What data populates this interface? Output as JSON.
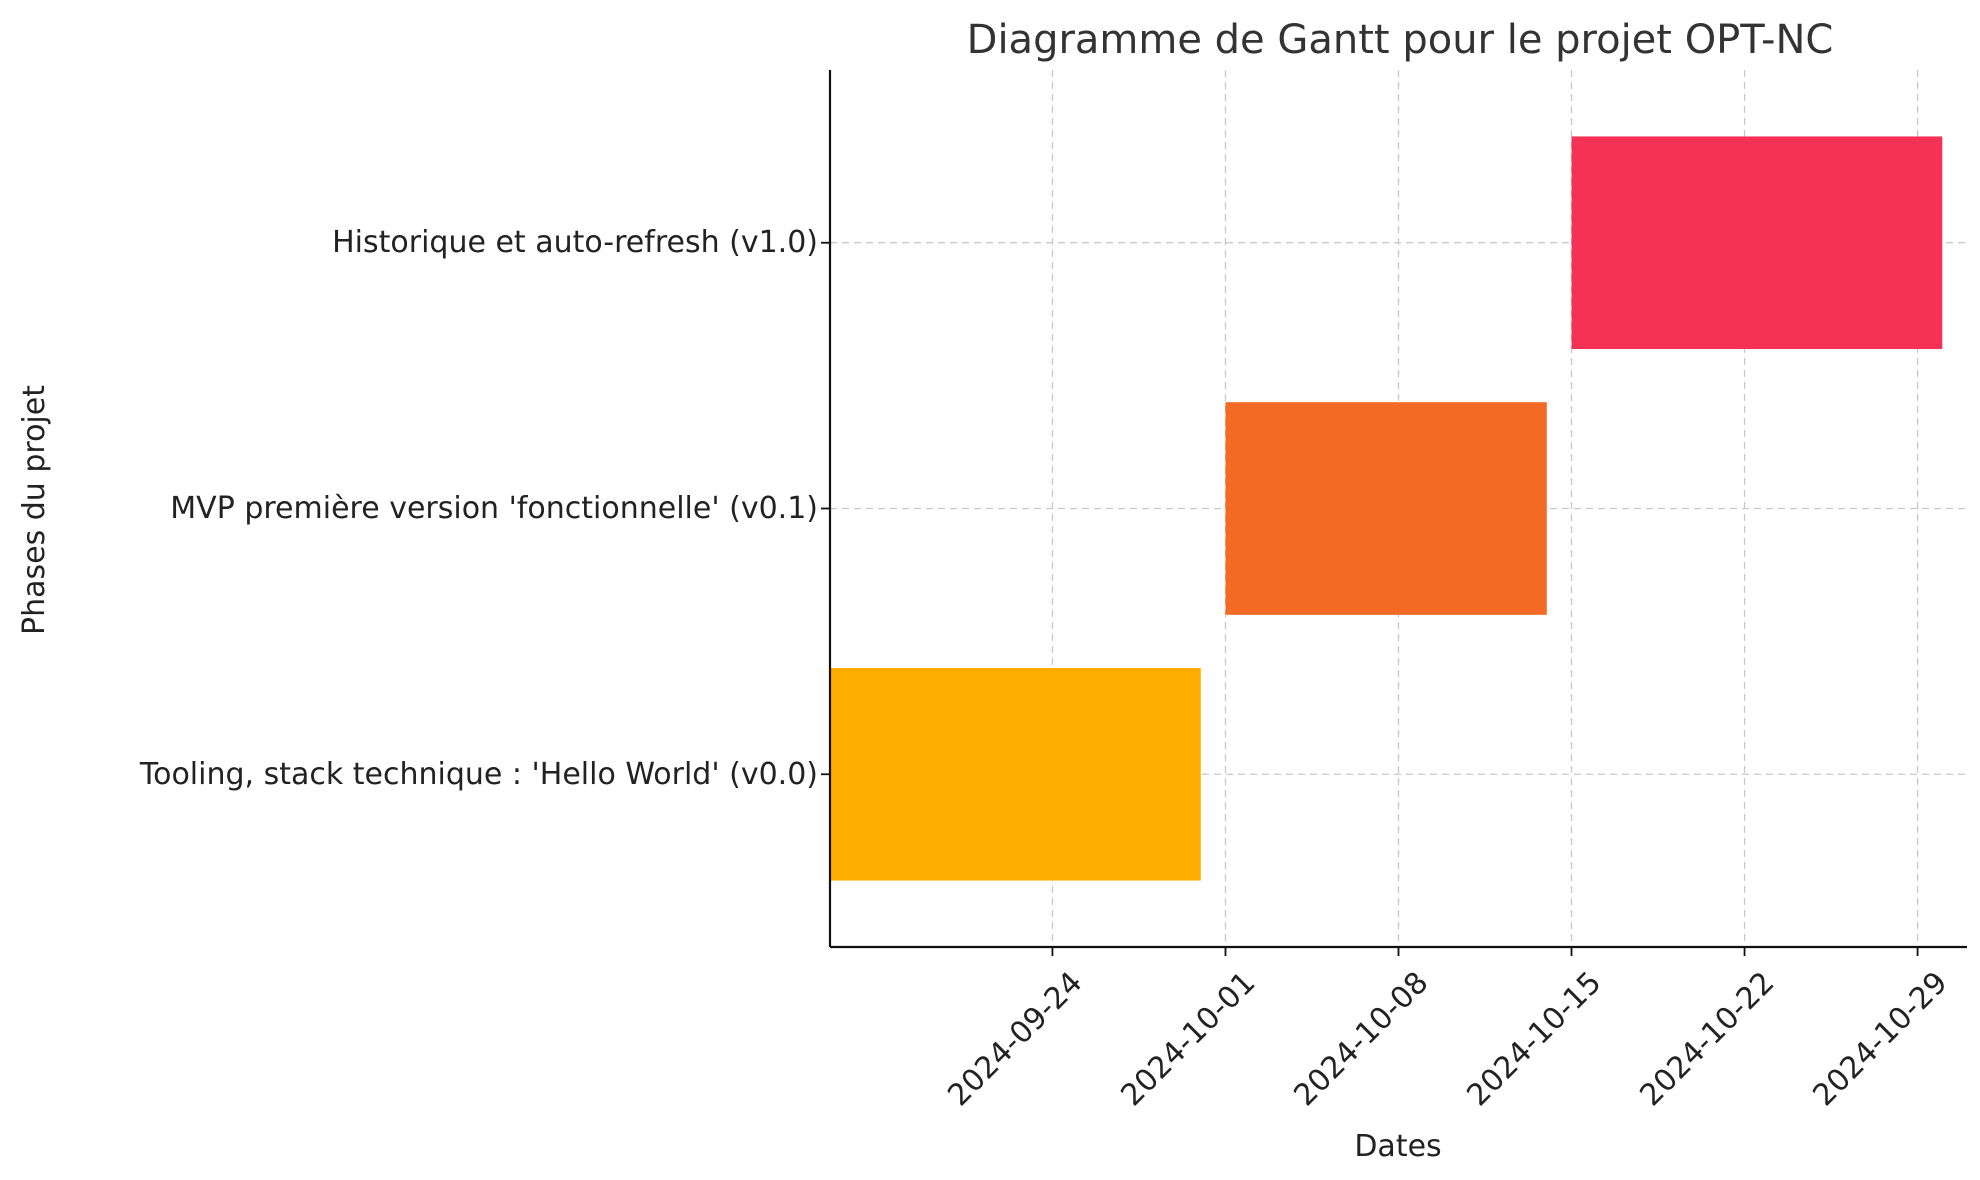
{
  "chart_data": {
    "type": "gantt",
    "title": "Diagramme de Gantt pour le projet OPT-NC",
    "xlabel": "Dates",
    "ylabel": "Phases du projet",
    "xlim": [
      "2024-09-15",
      "2024-10-31"
    ],
    "x_ticks": [
      "2024-09-24",
      "2024-10-01",
      "2024-10-08",
      "2024-10-15",
      "2024-10-22",
      "2024-10-29"
    ],
    "grid": true,
    "tasks": [
      {
        "label": "Tooling, stack technique : 'Hello World' (v0.0)",
        "start": "2024-09-15",
        "end": "2024-09-30",
        "color": "#FFAE00"
      },
      {
        "label": "MVP première version 'fonctionnelle' (v0.1)",
        "start": "2024-10-01",
        "end": "2024-10-14",
        "color": "#F26A23"
      },
      {
        "label": "Historique et auto-refresh (v1.0)",
        "start": "2024-10-15",
        "end": "2024-10-30",
        "color": "#F53255"
      }
    ]
  }
}
